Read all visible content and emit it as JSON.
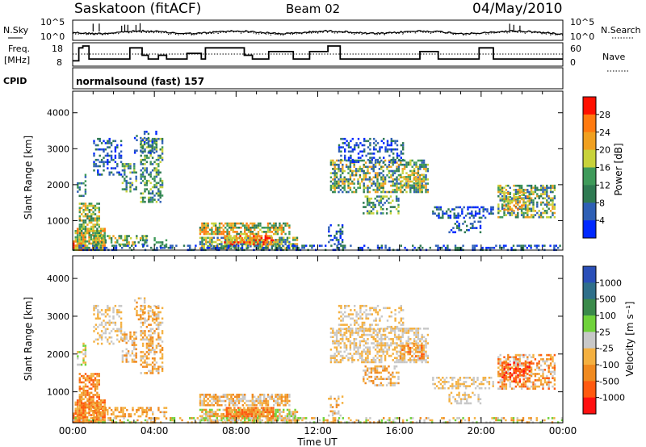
{
  "header": {
    "station": "Saskatoon (fitACF)",
    "beam": "Beam 02",
    "date": "04/May/2010"
  },
  "left_labels": {
    "nsky": "N.Sky",
    "freq_line1": "Freq.",
    "freq_line2": "[MHz]",
    "cpid": "CPID"
  },
  "right_labels": {
    "nsearch": "N.Search",
    "nave": "Nave"
  },
  "cpid_text": "normalsound (fast) 157",
  "noise_panel": {
    "ytick_top": "10^5",
    "ytick_bottom": "10^0",
    "rtick_top": "10^5",
    "rtick_bottom": "10^0"
  },
  "freq_panel": {
    "ytick_top": "18",
    "ytick_bottom": "8",
    "rtick_top": "60",
    "rtick_bottom": "0"
  },
  "chart_data": [
    {
      "type": "heatmap",
      "title": "",
      "xlabel": "Time UT",
      "ylabel": "Slant Range [km]",
      "xlim": [
        0,
        24
      ],
      "ylim": [
        180,
        4600
      ],
      "xticks": [
        "00:00",
        "04:00",
        "08:00",
        "12:00",
        "16:00",
        "20:00",
        "00:00"
      ],
      "yticks": [
        "1000",
        "2000",
        "3000",
        "4000"
      ],
      "colorbar": {
        "label": "Power [dB]",
        "ticks": [
          "4",
          "8",
          "12",
          "16",
          "20",
          "24",
          "28"
        ],
        "colors": [
          "#0028ff",
          "#2e5fb5",
          "#2f7a52",
          "#3f9a5a",
          "#c8d23a",
          "#f0a020",
          "#ff7a10",
          "#ff1000"
        ]
      }
    },
    {
      "type": "heatmap",
      "title": "",
      "xlabel": "Time UT",
      "ylabel": "Slant Range [km]",
      "xlim": [
        0,
        24
      ],
      "ylim": [
        180,
        4600
      ],
      "xticks": [
        "00:00",
        "04:00",
        "08:00",
        "12:00",
        "16:00",
        "20:00",
        "00:00"
      ],
      "yticks": [
        "1000",
        "2000",
        "3000",
        "4000"
      ],
      "colorbar": {
        "label": "Velocity [m s⁻¹]",
        "ticks": [
          "1000",
          "500",
          "100",
          "25",
          "-25",
          "-100",
          "-500",
          "-1000"
        ],
        "colors": [
          "#2a4fb8",
          "#2f6f8a",
          "#3a8a4a",
          "#6fd23a",
          "#c8c8c8",
          "#f4b040",
          "#f08a20",
          "#ff5a10",
          "#ff1010"
        ]
      }
    }
  ],
  "x_axis_label": "Time UT",
  "x_ticks": [
    "00:00",
    "04:00",
    "08:00",
    "12:00",
    "16:00",
    "20:00",
    "00:00"
  ]
}
